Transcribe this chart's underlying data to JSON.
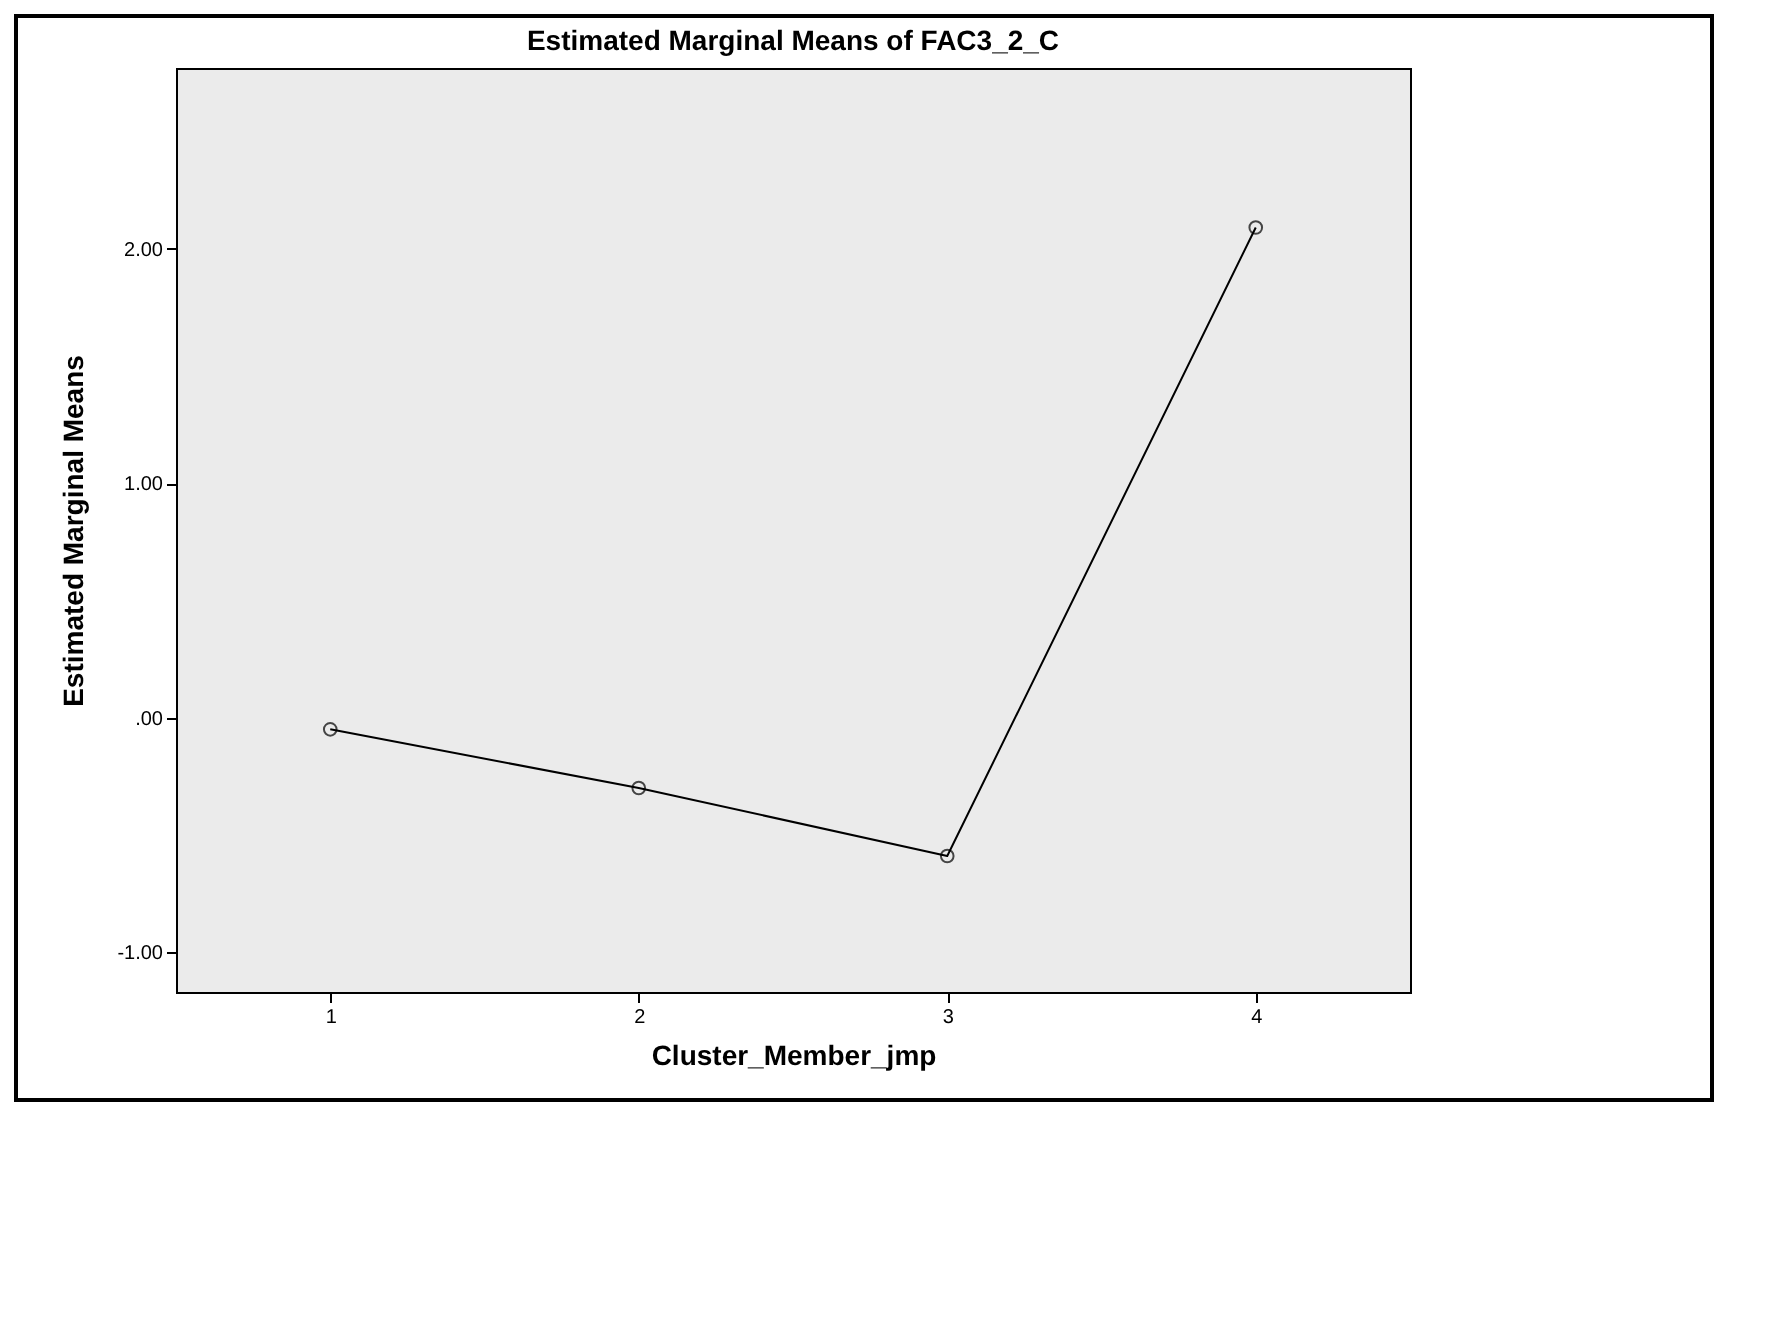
{
  "chart_data": {
    "type": "line",
    "title": "Estimated Marginal Means of FAC3_2_C",
    "xlabel": "Cluster_Member_jmp",
    "ylabel": "Estimated Marginal Means",
    "categories": [
      "1",
      "2",
      "3",
      "4"
    ],
    "series": [
      {
        "color": "#000000",
        "values": [
          -0.05,
          -0.3,
          -0.59,
          2.09
        ]
      }
    ],
    "ylim": [
      -1.17,
      2.77
    ],
    "yticks": [
      {
        "value": -1,
        "label": "-1.00"
      },
      {
        "value": 0,
        "label": ".00"
      },
      {
        "value": 1,
        "label": "1.00"
      },
      {
        "value": 2,
        "label": "2.00"
      }
    ],
    "marker": "circle",
    "line_style": "solid",
    "grid": false,
    "legend": false
  }
}
